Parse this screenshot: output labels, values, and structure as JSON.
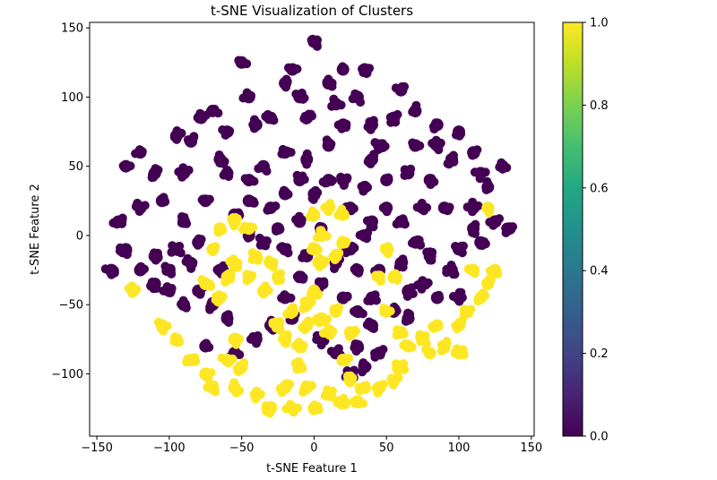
{
  "chart_data": {
    "type": "scatter",
    "title": "t-SNE Visualization of Clusters",
    "xlabel": "t-SNE Feature 1",
    "ylabel": "t-SNE Feature 2",
    "xlim": [
      -155,
      152
    ],
    "ylim": [
      -145,
      154
    ],
    "xticks": [
      -150,
      -100,
      -50,
      0,
      50,
      100,
      150
    ],
    "xtick_labels": [
      "−150",
      "−100",
      "−50",
      "0",
      "50",
      "100",
      "150"
    ],
    "yticks": [
      -100,
      -50,
      0,
      50,
      100,
      150
    ],
    "ytick_labels": [
      "−100",
      "−50",
      "0",
      "50",
      "100",
      "150"
    ],
    "grid": false,
    "legend": "none",
    "colormap": "viridis",
    "colorbar": {
      "range": [
        0.0,
        1.0
      ],
      "ticks": [
        0.0,
        0.2,
        0.4,
        0.6,
        0.8,
        1.0
      ],
      "tick_labels": [
        "0.0",
        "0.2",
        "0.4",
        "0.6",
        "0.8",
        "1.0"
      ]
    },
    "colors": {
      "class_0": "#440154",
      "class_1": "#fde725"
    },
    "series": [
      {
        "name": "0",
        "value": 0.0,
        "clusters": [
          [
            -78,
            85
          ],
          [
            -70,
            90
          ],
          [
            -85,
            68
          ],
          [
            -95,
            72
          ],
          [
            -60,
            75
          ],
          [
            -65,
            55
          ],
          [
            -90,
            45
          ],
          [
            -110,
            45
          ],
          [
            -120,
            60
          ],
          [
            -130,
            50
          ],
          [
            -120,
            20
          ],
          [
            -135,
            10
          ],
          [
            -130,
            -10
          ],
          [
            -140,
            -25
          ],
          [
            -105,
            25
          ],
          [
            -90,
            10
          ],
          [
            -75,
            25
          ],
          [
            -80,
            -5
          ],
          [
            -95,
            -10
          ],
          [
            -110,
            -15
          ],
          [
            -100,
            -25
          ],
          [
            -85,
            -20
          ],
          [
            -60,
            45
          ],
          [
            -45,
            40
          ],
          [
            -35,
            50
          ],
          [
            -40,
            80
          ],
          [
            -45,
            100
          ],
          [
            -30,
            85
          ],
          [
            -20,
            110
          ],
          [
            -15,
            120
          ],
          [
            -10,
            100
          ],
          [
            -20,
            60
          ],
          [
            -5,
            55
          ],
          [
            10,
            65
          ],
          [
            20,
            80
          ],
          [
            15,
            95
          ],
          [
            30,
            100
          ],
          [
            35,
            120
          ],
          [
            20,
            120
          ],
          [
            0,
            140
          ],
          [
            40,
            80
          ],
          [
            45,
            65
          ],
          [
            55,
            85
          ],
          [
            60,
            105
          ],
          [
            70,
            90
          ],
          [
            85,
            80
          ],
          [
            85,
            65
          ],
          [
            95,
            55
          ],
          [
            100,
            75
          ],
          [
            110,
            60
          ],
          [
            115,
            45
          ],
          [
            130,
            50
          ],
          [
            120,
            35
          ],
          [
            110,
            20
          ],
          [
            125,
            10
          ],
          [
            135,
            5
          ],
          [
            115,
            -5
          ],
          [
            100,
            -10
          ],
          [
            95,
            -25
          ],
          [
            100,
            -45
          ],
          [
            85,
            -45
          ],
          [
            75,
            -35
          ],
          [
            80,
            -15
          ],
          [
            70,
            -5
          ],
          [
            60,
            10
          ],
          [
            75,
            20
          ],
          [
            90,
            20
          ],
          [
            80,
            40
          ],
          [
            65,
            45
          ],
          [
            50,
            40
          ],
          [
            40,
            55
          ],
          [
            35,
            35
          ],
          [
            50,
            20
          ],
          [
            40,
            10
          ],
          [
            25,
            20
          ],
          [
            20,
            40
          ],
          [
            10,
            40
          ],
          [
            0,
            30
          ],
          [
            -10,
            40
          ],
          [
            -20,
            30
          ],
          [
            -30,
            20
          ],
          [
            -45,
            25
          ],
          [
            -55,
            15
          ],
          [
            -45,
            0
          ],
          [
            -35,
            -5
          ],
          [
            -20,
            -10
          ],
          [
            -25,
            5
          ],
          [
            -10,
            10
          ],
          [
            5,
            5
          ],
          [
            -5,
            -15
          ],
          [
            -10,
            -30
          ],
          [
            -20,
            -45
          ],
          [
            -15,
            -60
          ],
          [
            5,
            -35
          ],
          [
            15,
            -20
          ],
          [
            25,
            -10
          ],
          [
            35,
            0
          ],
          [
            30,
            -25
          ],
          [
            20,
            -45
          ],
          [
            30,
            -55
          ],
          [
            40,
            -45
          ],
          [
            45,
            -25
          ],
          [
            60,
            -20
          ],
          [
            65,
            -40
          ],
          [
            55,
            -55
          ],
          [
            40,
            -65
          ],
          [
            30,
            -80
          ],
          [
            35,
            -95
          ],
          [
            25,
            -100
          ],
          [
            15,
            -85
          ],
          [
            5,
            -75
          ],
          [
            45,
            -85
          ],
          [
            65,
            -60
          ],
          [
            -30,
            -65
          ],
          [
            -40,
            -75
          ],
          [
            -55,
            -85
          ],
          [
            -60,
            -60
          ],
          [
            -70,
            -50
          ],
          [
            -80,
            -40
          ],
          [
            -90,
            -50
          ],
          [
            -100,
            -40
          ],
          [
            -110,
            -35
          ],
          [
            -65,
            -25
          ],
          [
            -75,
            -80
          ],
          [
            -120,
            -25
          ],
          [
            -5,
            85
          ],
          [
            -50,
            125
          ],
          [
            10,
            110
          ],
          [
            70,
            65
          ],
          [
            110,
            5
          ]
        ]
      },
      {
        "name": "1",
        "value": 1.0,
        "clusters": [
          [
            -125,
            -40
          ],
          [
            -105,
            -65
          ],
          [
            -95,
            -75
          ],
          [
            -85,
            -90
          ],
          [
            -75,
            -100
          ],
          [
            -70,
            -110
          ],
          [
            -55,
            -110
          ],
          [
            -60,
            -90
          ],
          [
            -55,
            -75
          ],
          [
            -50,
            -95
          ],
          [
            -40,
            -115
          ],
          [
            -30,
            -125
          ],
          [
            -20,
            -110
          ],
          [
            -15,
            -125
          ],
          [
            -10,
            -95
          ],
          [
            -5,
            -110
          ],
          [
            0,
            -125
          ],
          [
            10,
            -115
          ],
          [
            20,
            -120
          ],
          [
            25,
            -105
          ],
          [
            35,
            -110
          ],
          [
            30,
            -120
          ],
          [
            45,
            -110
          ],
          [
            55,
            -105
          ],
          [
            60,
            -95
          ],
          [
            65,
            -80
          ],
          [
            60,
            -70
          ],
          [
            75,
            -75
          ],
          [
            80,
            -85
          ],
          [
            90,
            -80
          ],
          [
            100,
            -85
          ],
          [
            85,
            -65
          ],
          [
            100,
            -65
          ],
          [
            105,
            -55
          ],
          [
            115,
            -45
          ],
          [
            120,
            -35
          ],
          [
            125,
            -25
          ],
          [
            110,
            -25
          ],
          [
            120,
            20
          ],
          [
            -75,
            -35
          ],
          [
            -65,
            -45
          ],
          [
            -60,
            -30
          ],
          [
            -45,
            -30
          ],
          [
            -35,
            -40
          ],
          [
            -55,
            -20
          ],
          [
            -40,
            -15
          ],
          [
            -45,
            5
          ],
          [
            -55,
            10
          ],
          [
            -65,
            5
          ],
          [
            -70,
            -10
          ],
          [
            -30,
            -20
          ],
          [
            -25,
            -30
          ],
          [
            -20,
            -75
          ],
          [
            -25,
            -65
          ],
          [
            -10,
            -80
          ],
          [
            -15,
            -55
          ],
          [
            -5,
            -50
          ],
          [
            0,
            -40
          ],
          [
            5,
            -60
          ],
          [
            10,
            -70
          ],
          [
            15,
            -55
          ],
          [
            5,
            -20
          ],
          [
            0,
            -10
          ],
          [
            5,
            0
          ],
          [
            0,
            15
          ],
          [
            10,
            20
          ],
          [
            20,
            15
          ],
          [
            20,
            -5
          ],
          [
            15,
            -15
          ],
          [
            25,
            -70
          ],
          [
            20,
            -90
          ],
          [
            50,
            -10
          ],
          [
            45,
            -30
          ],
          [
            55,
            -30
          ],
          [
            50,
            -55
          ],
          [
            -5,
            -65
          ]
        ]
      }
    ]
  }
}
